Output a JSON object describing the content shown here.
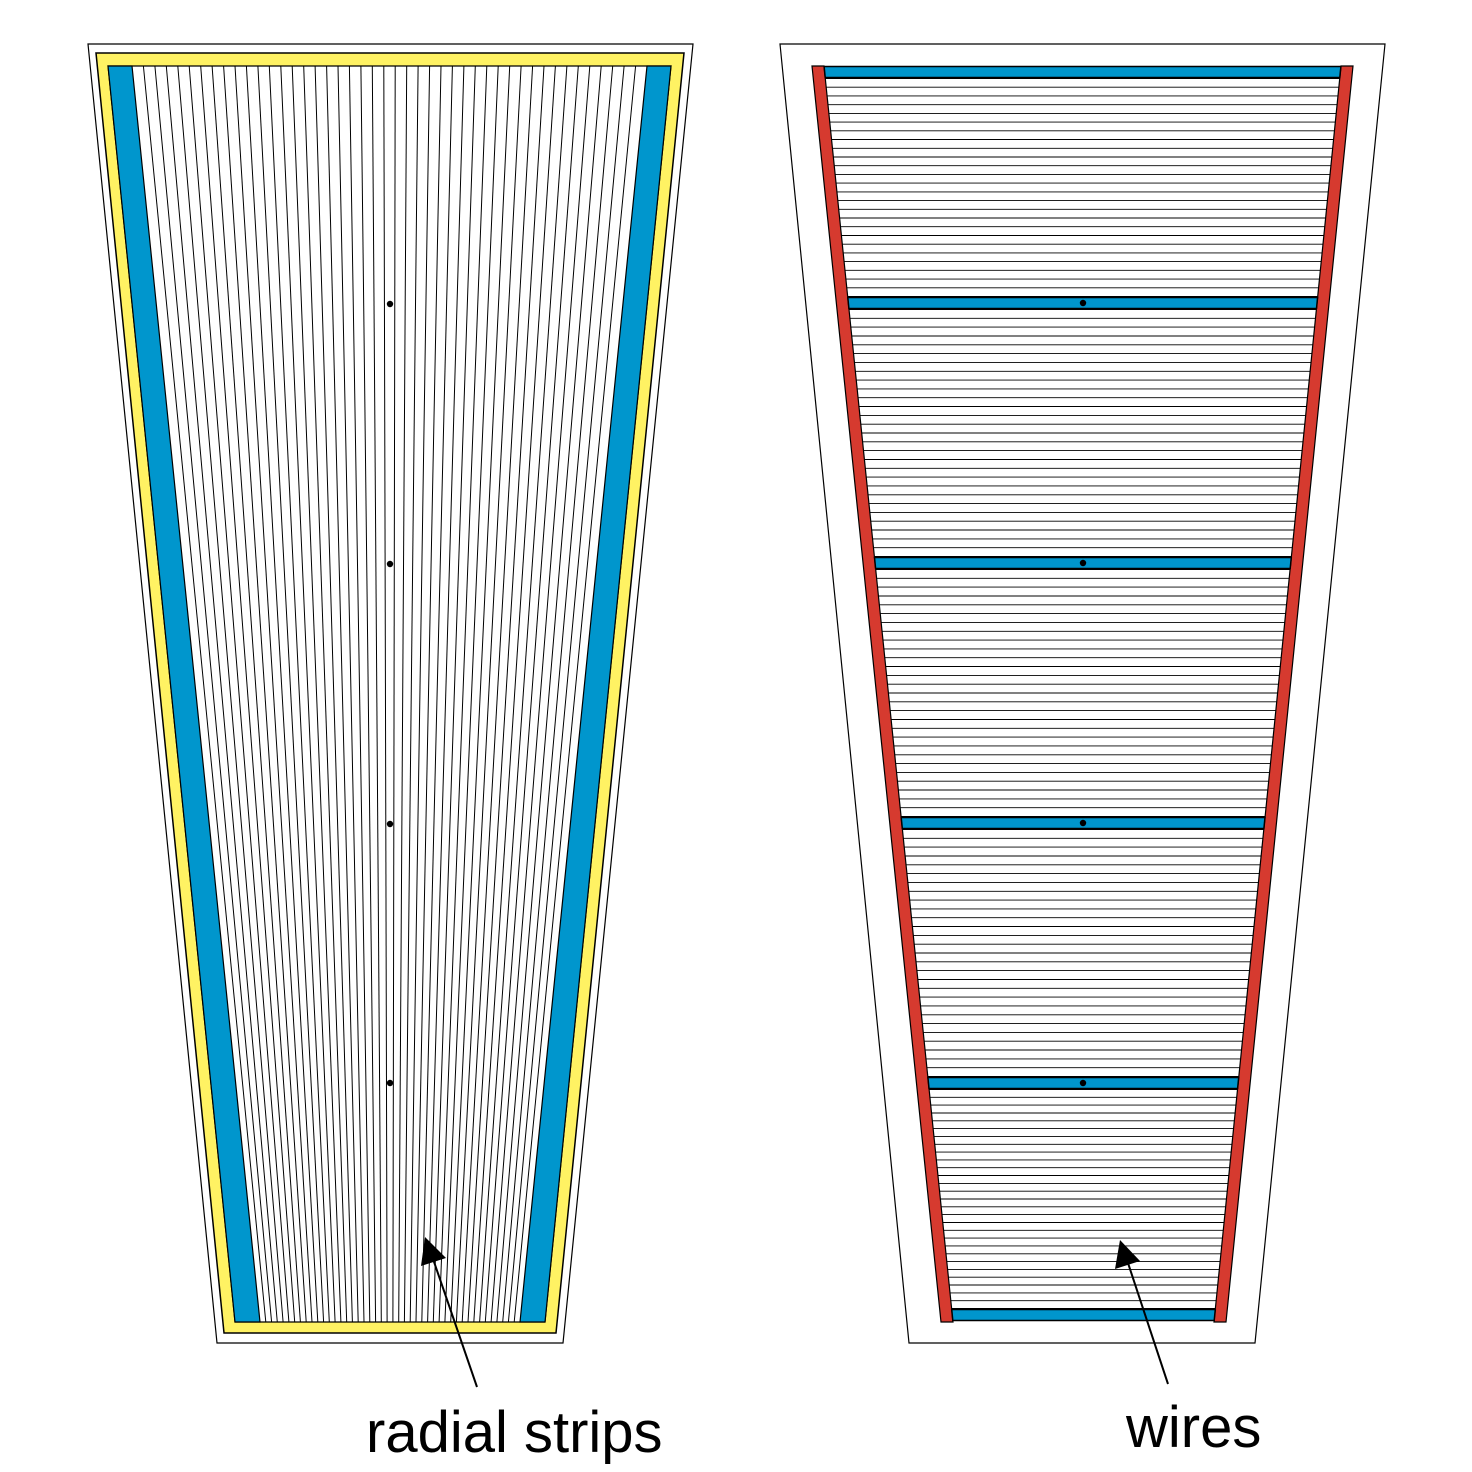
{
  "labels": {
    "left": "radial strips",
    "right": "wires"
  },
  "colors": {
    "yellow": "#fff263",
    "blue": "#0096cd",
    "red": "#d63a2f",
    "line": "#000000",
    "background": "#ffffff"
  },
  "left_panel": {
    "name": "radial-strips-panel",
    "strip_count": 45,
    "markers": 4
  },
  "right_panel": {
    "name": "wires-panel",
    "support_bars": 6,
    "wire_rows_per_section": 28,
    "markers": 4
  }
}
